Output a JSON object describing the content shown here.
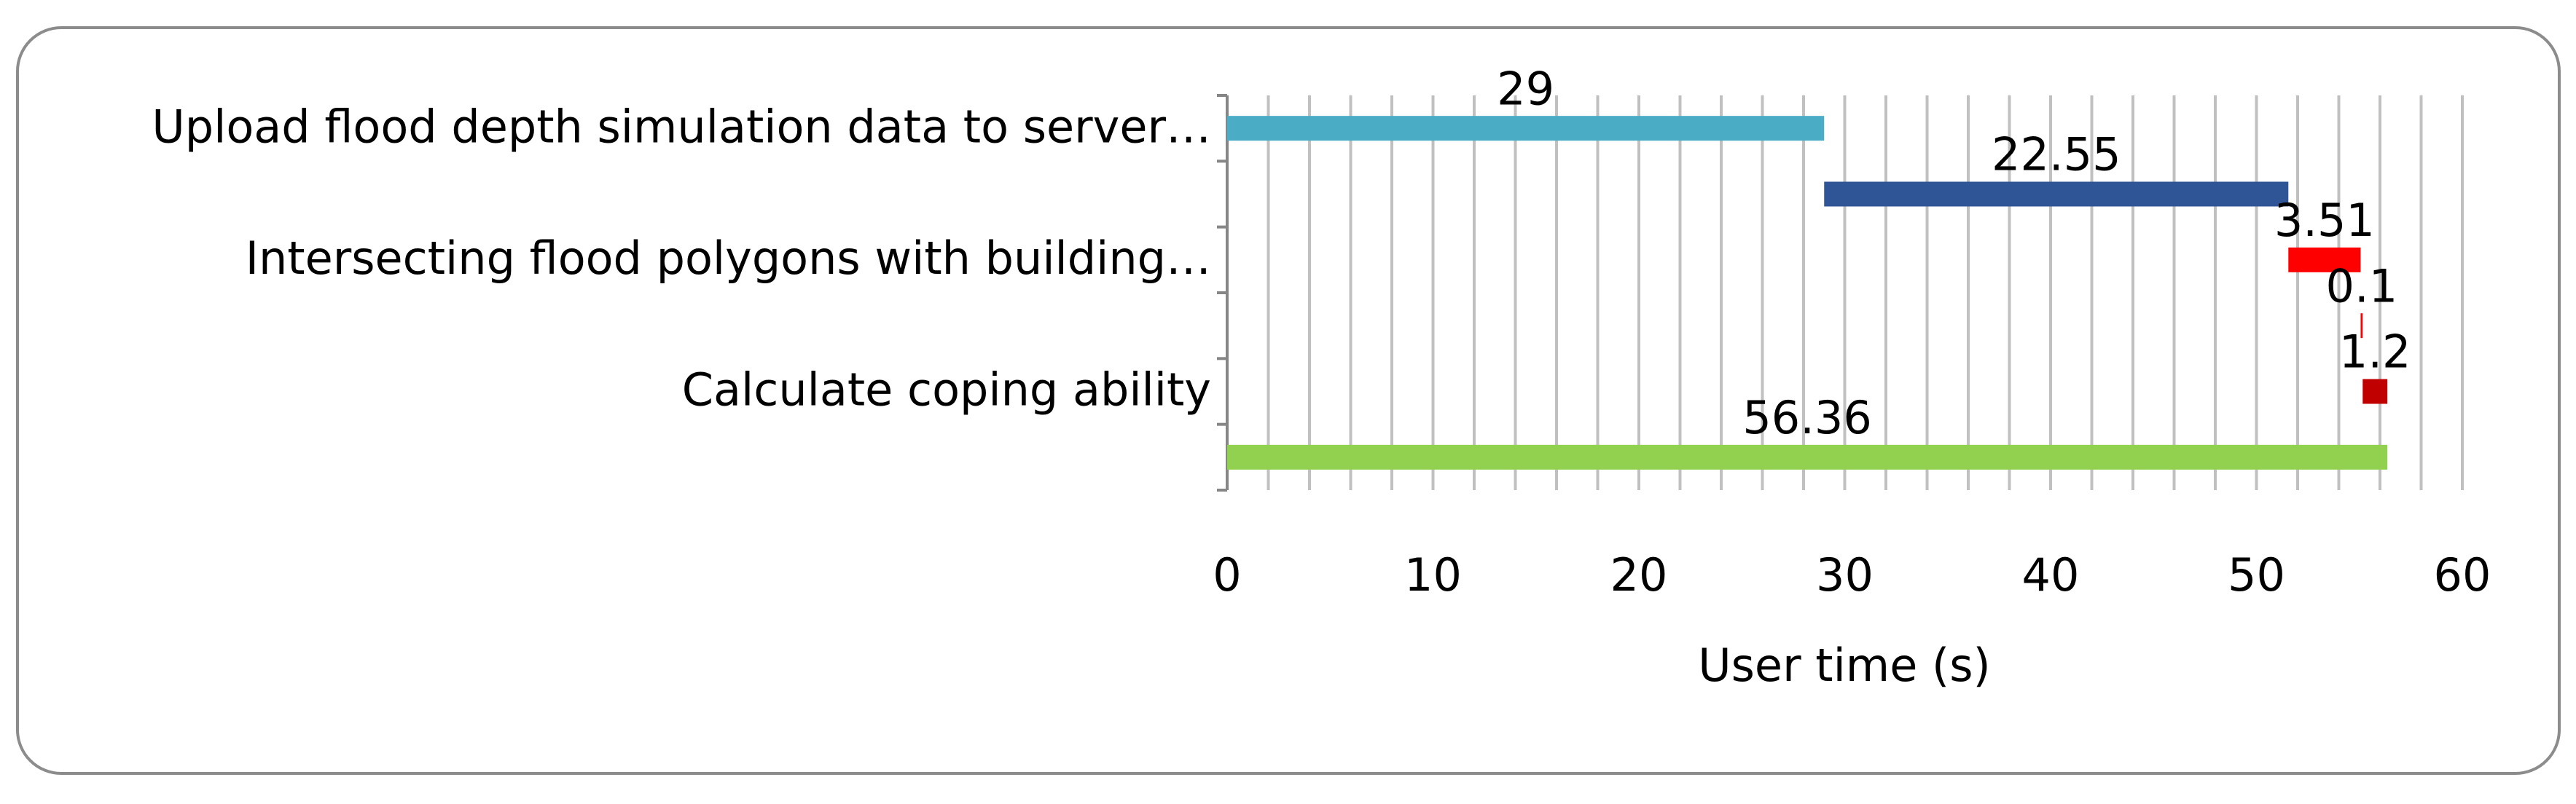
{
  "chart_data": {
    "type": "gantt",
    "x_label": "User time (s)",
    "categories": [
      "Upload flood depth simulation data to server…",
      null,
      "Intersecting flood polygons with building…",
      null,
      "Calculate coping ability",
      null
    ],
    "starts": [
      0,
      29,
      51.55,
      55.06,
      55.16,
      0
    ],
    "values": [
      29,
      22.55,
      3.51,
      0.1,
      1.2,
      56.36
    ],
    "colors": [
      "#4bacc6",
      "#2f5597",
      "#ff0000",
      "#ff0000",
      "#c00000",
      "#92d050"
    ],
    "xlim": [
      0,
      60
    ],
    "xticks": [
      0,
      10,
      20,
      30,
      40,
      50,
      60
    ],
    "xminorticks": [
      2,
      4,
      6,
      8,
      12,
      14,
      16,
      18,
      22,
      24,
      26,
      28,
      32,
      34,
      36,
      38,
      42,
      44,
      46,
      48,
      52,
      54,
      56,
      58
    ],
    "grid": true
  }
}
